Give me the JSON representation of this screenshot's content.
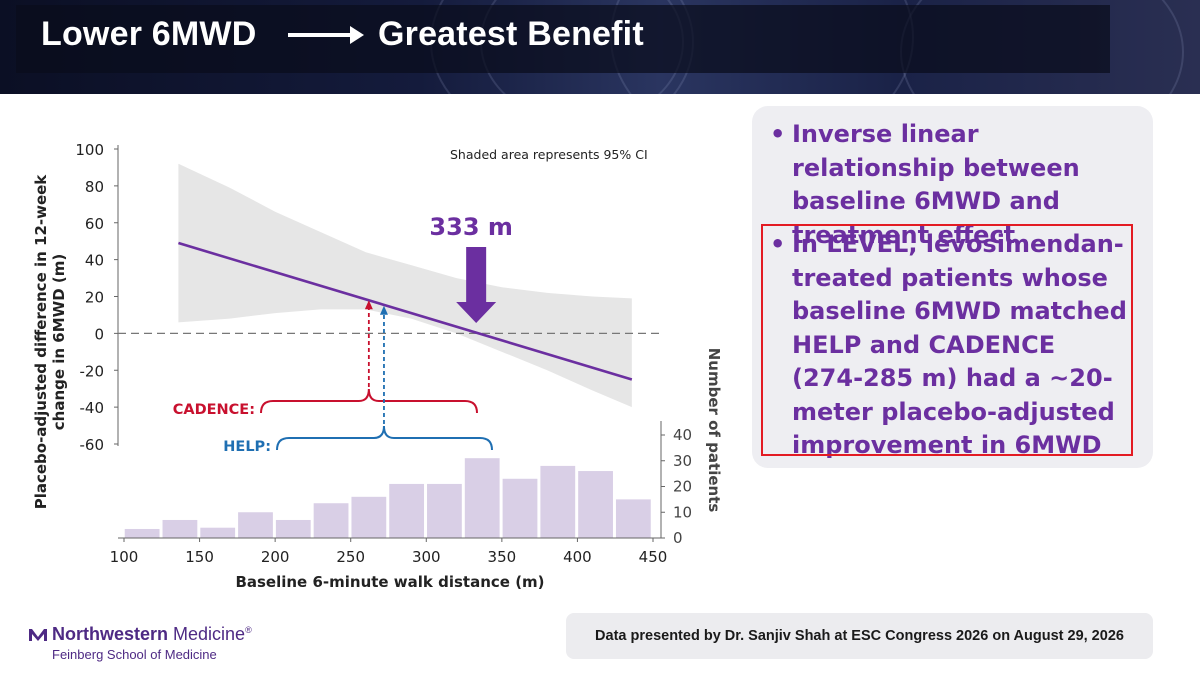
{
  "header": {
    "title_left": "Lower 6MWD",
    "title_right": "Greatest Benefit",
    "arrow_icon": "right-arrow-icon"
  },
  "colors": {
    "accent_purple": "#6b2fa0",
    "cadence_red": "#c8102e",
    "help_blue": "#1f6fb2",
    "histogram_fill": "#d9cfe6",
    "ci_fill": "#e6e6e6",
    "highlight_border": "#e31b23"
  },
  "bullets": [
    {
      "text": "Inverse linear relationship between baseline 6MWD and treatment effect"
    },
    {
      "text": "In LEVEL, levosimendan-treated patients whose baseline 6MWD matched HELP and CADENCE (274-285 m) had a ~20-meter placebo-adjusted improvement in 6MWD"
    }
  ],
  "footer": {
    "text": "Data presented by Dr. Sanjiv Shah at ESC Congress 2026 on August 29, 2026"
  },
  "logo": {
    "name_bold": "Northwestern",
    "name_regular": " Medicine",
    "registered": "®",
    "subtitle": "Feinberg School of Medicine"
  },
  "chart_data": {
    "type": "line",
    "title": "",
    "xlabel": "Baseline 6-minute walk distance (m)",
    "ylabel": "Placebo-adjusted difference in 12-week change in 6MWD (m)",
    "ylabel_lines": [
      "Placebo-adjusted difference in 12-week",
      "change in 6MWD (m)"
    ],
    "y2label": "Number of patients",
    "note": "Shaded area represents 95% CI",
    "xlim": [
      100,
      450
    ],
    "ylim": [
      -60,
      100
    ],
    "y2lim": [
      0,
      40
    ],
    "xticks": [
      100,
      150,
      200,
      250,
      300,
      350,
      400,
      450
    ],
    "yticks": [
      100,
      80,
      60,
      40,
      20,
      0,
      -20,
      -40,
      -60
    ],
    "y2ticks": [
      40,
      30,
      20,
      10,
      0
    ],
    "reference_line": 0,
    "regression": {
      "x": [
        136,
        436
      ],
      "y": [
        49,
        -25
      ]
    },
    "ci_band": {
      "x": [
        136,
        170,
        200,
        230,
        260,
        290,
        320,
        350,
        380,
        410,
        436
      ],
      "upper": [
        92,
        79,
        66,
        55,
        44,
        37,
        30,
        25,
        22,
        20,
        19
      ],
      "lower": [
        6,
        8,
        11,
        13,
        13,
        8,
        0,
        -10,
        -20,
        -31,
        -40
      ]
    },
    "annotations": [
      {
        "label": "333 m",
        "x": 333
      },
      {
        "label": "CADENCE:",
        "range": [
          274,
          285
        ],
        "arrow_x": 262,
        "arrow_to_y": 18
      },
      {
        "label": "HELP:",
        "range": [
          274,
          285
        ],
        "arrow_x": 272,
        "arrow_to_y": 15
      }
    ],
    "histogram": {
      "bins": [
        112,
        137,
        162,
        187,
        212,
        237,
        262,
        287,
        312,
        337,
        362,
        387,
        412,
        437
      ],
      "counts": [
        3.5,
        7,
        4,
        10,
        7,
        13.5,
        16,
        21,
        21,
        31,
        23,
        28,
        26,
        15
      ]
    }
  }
}
